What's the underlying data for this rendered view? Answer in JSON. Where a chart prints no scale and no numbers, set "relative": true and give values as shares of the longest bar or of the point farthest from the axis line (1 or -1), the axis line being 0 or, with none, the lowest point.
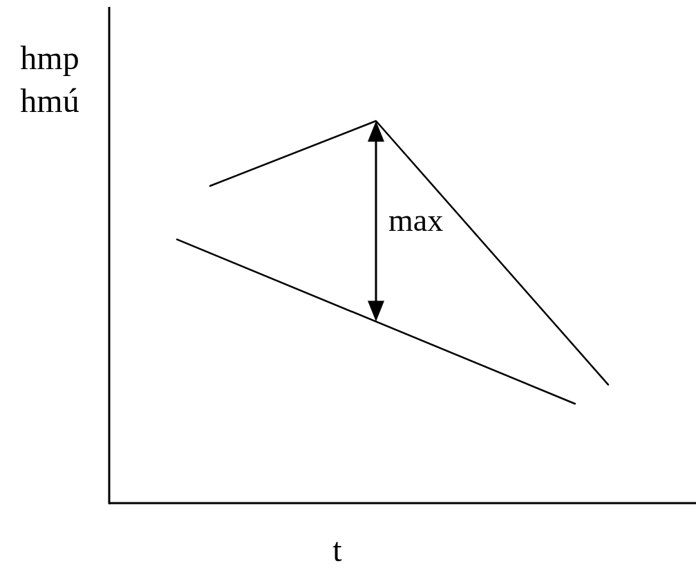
{
  "chart_data": {
    "type": "line",
    "relative": true,
    "xlabel": "t",
    "ylabel": "hmp\nhmú",
    "categories": [
      null,
      null,
      null,
      null,
      null,
      null,
      null,
      null,
      null,
      null,
      null,
      null,
      null,
      null,
      null,
      null
    ],
    "series": [
      {
        "color": "#000000",
        "values": [
          null,
          null,
          null,
          0.83,
          null,
          null,
          null,
          null,
          1,
          null,
          null,
          null,
          null,
          null,
          null,
          0.31
        ]
      },
      {
        "color": "#000000",
        "values": [
          null,
          null,
          0.69,
          null,
          null,
          null,
          null,
          null,
          null,
          null,
          null,
          null,
          null,
          null,
          0.26,
          null
        ]
      }
    ],
    "annotations": [
      "max"
    ],
    "marker": "none",
    "line_style": "solid"
  }
}
